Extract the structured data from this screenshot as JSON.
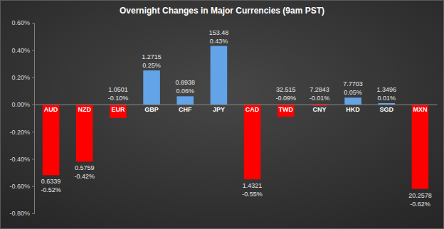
{
  "chart_data": {
    "type": "bar",
    "title": "Overnight Changes in Major Currencies (9am PST)",
    "categories": [
      "AUD",
      "NZD",
      "EUR",
      "GBP",
      "CHF",
      "JPY",
      "CAD",
      "TWD",
      "CNY",
      "HKD",
      "SGD",
      "MXN"
    ],
    "values": [
      -0.52,
      -0.42,
      -0.1,
      0.25,
      0.06,
      0.43,
      -0.55,
      -0.09,
      -0.01,
      0.05,
      0.01,
      -0.62
    ],
    "value_labels": [
      "-0.52%",
      "-0.42%",
      "-0.10%",
      "0.25%",
      "0.06%",
      "0.43%",
      "-0.55%",
      "-0.09%",
      "-0.01%",
      "0.05%",
      "0.01%",
      "-0.62%"
    ],
    "rates": [
      0.6339,
      0.5759,
      1.0501,
      1.2715,
      0.8938,
      153.48,
      1.4321,
      32.515,
      7.2843,
      7.7703,
      1.3496,
      20.2578
    ],
    "colors": [
      "#ff0000",
      "#ff0000",
      "#ff0000",
      "#63a3e8",
      "#63a3e8",
      "#63a3e8",
      "#ff0000",
      "#ff0000",
      "#ff0000",
      "#63a3e8",
      "#63a3e8",
      "#ff0000"
    ],
    "ylim": [
      -0.8,
      0.6
    ],
    "yticks": [
      {
        "value": -0.8,
        "label": "-0.80%"
      },
      {
        "value": -0.6,
        "label": "-0.60%"
      },
      {
        "value": -0.4,
        "label": "-0.40%"
      },
      {
        "value": -0.2,
        "label": "-0.20%"
      },
      {
        "value": 0,
        "label": "0.00%"
      },
      {
        "value": 0.2,
        "label": "0.20%"
      },
      {
        "value": 0.4,
        "label": "0.40%"
      },
      {
        "value": 0.6,
        "label": "0.60%"
      }
    ],
    "grid": false,
    "data_labels": true
  }
}
